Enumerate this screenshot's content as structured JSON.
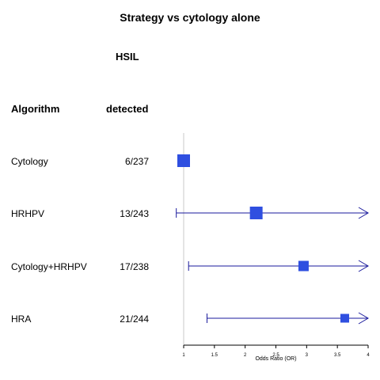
{
  "title": "Strategy vs cytology alone",
  "headers": {
    "algorithm": "Algorithm",
    "hsil": "HSIL",
    "detected": "detected"
  },
  "rows": [
    {
      "label": "Cytology",
      "count": "6/237"
    },
    {
      "label": "HRHPV",
      "count": "13/243"
    },
    {
      "label": "Cytology+HRHPV",
      "count": "17/238"
    },
    {
      "label": "HRA",
      "count": "21/244"
    }
  ],
  "xlabel": "Odds Ratio (OR)",
  "colors": {
    "point": "#2f4fe0",
    "ci": "#1a1a9c",
    "ref": "#c8c8c8",
    "axis": "#000000"
  },
  "chart_data": {
    "type": "forest",
    "title": "Strategy vs cytology alone",
    "xlabel": "Odds Ratio (OR)",
    "xlim": [
      1,
      4
    ],
    "xticks": [
      1,
      1.5,
      2,
      2.5,
      3,
      3.5,
      4
    ],
    "xtick_labels": [
      "1",
      "1.5",
      "2",
      "2.5",
      "3",
      "3.5",
      "4"
    ],
    "reference_line": 1,
    "categories": [
      "Cytology",
      "HRHPV",
      "Cytology+HRHPV",
      "HRA"
    ],
    "series": [
      {
        "values": [
          1.0,
          2.18,
          2.95,
          3.62
        ],
        "ci_lower": [
          null,
          0.88,
          1.08,
          1.38
        ],
        "ci_upper_arrow": [
          false,
          true,
          true,
          true
        ],
        "marker_size": [
          16,
          16,
          13,
          11
        ]
      }
    ]
  }
}
